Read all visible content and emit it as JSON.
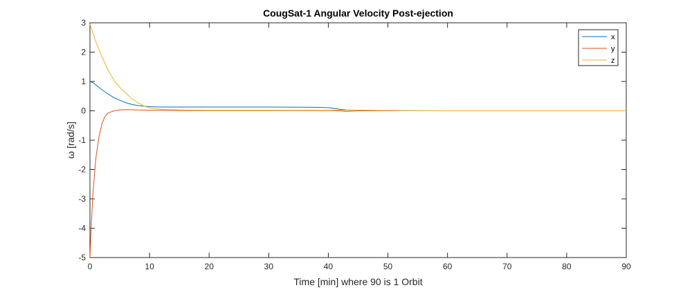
{
  "chart_data": {
    "type": "line",
    "title": "CougSat-1 Angular Velocity Post-ejection",
    "xlabel": "Time [min] where 90 is 1 Orbit",
    "ylabel": "ω [rad/s]",
    "xlim": [
      0,
      90
    ],
    "ylim": [
      -5,
      3
    ],
    "xticks": [
      0,
      10,
      20,
      30,
      40,
      50,
      60,
      70,
      80,
      90
    ],
    "yticks": [
      3,
      2,
      1,
      0,
      -1,
      -2,
      -3,
      -4,
      -5
    ],
    "grid": false,
    "legend_position": "top-right",
    "series": [
      {
        "name": "x",
        "color": "#0072BD",
        "x": [
          0,
          0.5,
          1,
          2,
          3,
          4,
          5,
          6,
          7,
          8,
          10,
          12,
          15,
          20,
          30,
          38,
          40,
          41,
          42,
          43,
          45,
          50,
          60,
          90
        ],
        "y": [
          1.0,
          0.96,
          0.88,
          0.72,
          0.58,
          0.45,
          0.36,
          0.28,
          0.22,
          0.18,
          0.14,
          0.13,
          0.13,
          0.13,
          0.13,
          0.12,
          0.11,
          0.08,
          0.05,
          0.03,
          0.02,
          0.01,
          0.0,
          0.0
        ]
      },
      {
        "name": "y",
        "color": "#D95319",
        "x": [
          0,
          0.2,
          0.5,
          1,
          1.5,
          2,
          2.5,
          3,
          4,
          5,
          6,
          8,
          10,
          15,
          20,
          30,
          40,
          42,
          43,
          45,
          50,
          90
        ],
        "y": [
          -5.0,
          -4.0,
          -2.8,
          -1.6,
          -0.9,
          -0.45,
          -0.2,
          -0.08,
          0.0,
          0.03,
          0.04,
          0.03,
          0.02,
          0.01,
          0.01,
          0.01,
          0.01,
          0.0,
          -0.02,
          0.0,
          0.0,
          0.0
        ]
      },
      {
        "name": "z",
        "color": "#EDB120",
        "x": [
          0,
          1,
          2,
          3,
          4,
          5,
          6,
          7,
          8,
          9,
          10,
          11,
          12,
          15,
          20,
          30,
          40,
          45,
          50,
          52,
          60,
          90
        ],
        "y": [
          2.95,
          2.35,
          1.85,
          1.4,
          1.05,
          0.8,
          0.6,
          0.42,
          0.28,
          0.17,
          0.1,
          0.07,
          0.05,
          0.03,
          0.02,
          0.02,
          0.02,
          0.02,
          0.01,
          0.0,
          0.0,
          0.0
        ]
      }
    ]
  }
}
